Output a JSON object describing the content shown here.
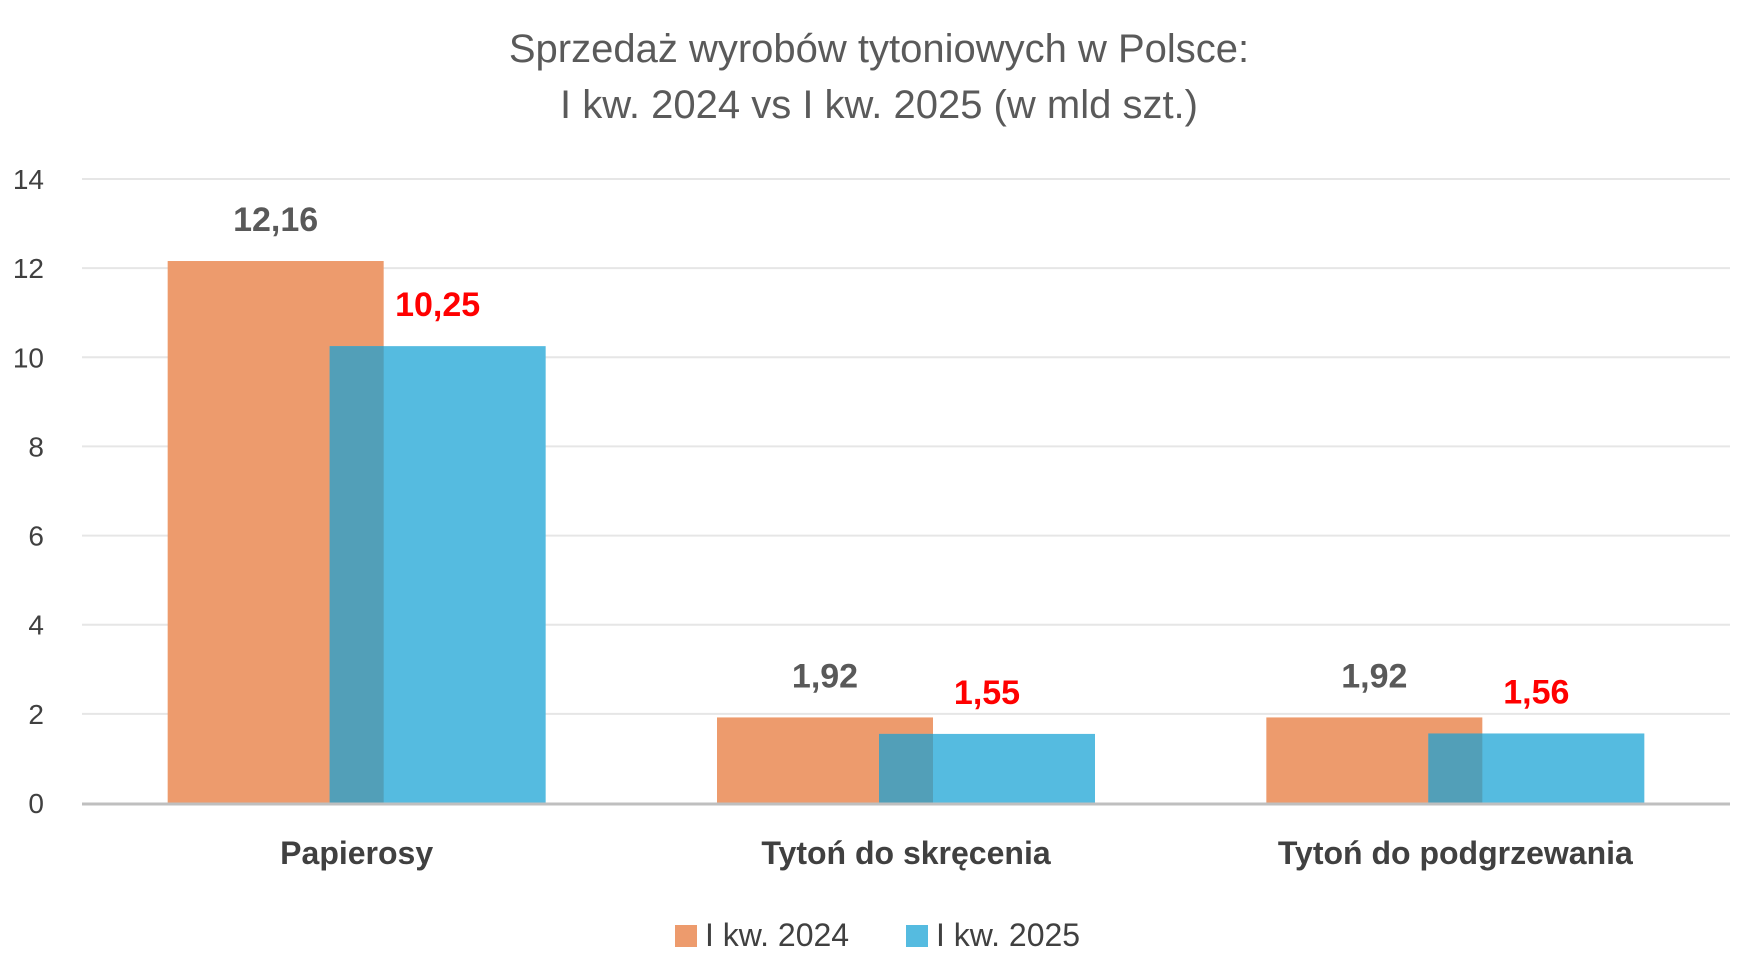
{
  "chart_data": {
    "type": "bar",
    "title": "Sprzedaż wyrobów tytoniowych w Polsce:",
    "subtitle": "I kw. 2024 vs I kw. 2025 (w mld szt.)",
    "categories": [
      "Papierosy",
      "Tytoń do skręcenia",
      "Tytoń do podgrzewania"
    ],
    "series": [
      {
        "name": "I kw. 2024",
        "values": [
          12.16,
          1.92,
          1.92
        ],
        "labels": [
          "12,16",
          "1,92",
          "1,92"
        ],
        "color": "#ed9b6d",
        "label_color": "#595959"
      },
      {
        "name": "I kw. 2025",
        "values": [
          10.25,
          1.55,
          1.56
        ],
        "labels": [
          "10,25",
          "1,55",
          "1,56"
        ],
        "color": "#55bbe0",
        "label_color": "#ff0000"
      }
    ],
    "overlap_color": "#529fb8",
    "ylim": [
      0,
      14
    ],
    "yticks": [
      0,
      2,
      4,
      6,
      8,
      10,
      12,
      14
    ],
    "grid": true,
    "legend_position": "bottom"
  }
}
